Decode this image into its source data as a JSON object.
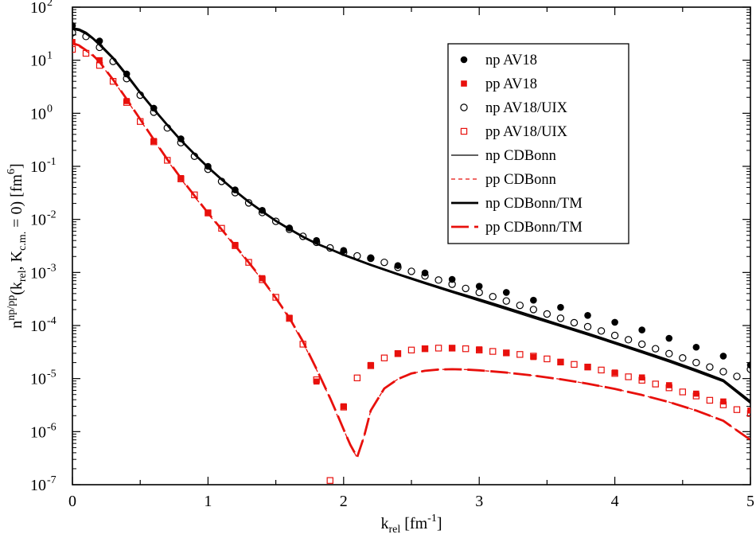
{
  "chart_data": {
    "type": "scatter",
    "title": "",
    "xlabel": {
      "main": "k",
      "sub": "rel",
      "unit_pre": " [fm",
      "unit_sup": "-1",
      "unit_post": "]"
    },
    "ylabel": {
      "main": "n",
      "sup": "np/pp",
      "arg_open": "(k",
      "sub1": "rel",
      "mid": ", K",
      "sub2": "c.m.",
      "arg_close": " = 0) [fm",
      "unit_sup": "6",
      "unit_close": "]"
    },
    "xlim": [
      0,
      5
    ],
    "ylim_log10": [
      -7,
      2
    ],
    "x_ticks": [
      {
        "value": 0,
        "label": "0"
      },
      {
        "value": 1,
        "label": "1"
      },
      {
        "value": 2,
        "label": "2"
      },
      {
        "value": 3,
        "label": "3"
      },
      {
        "value": 4,
        "label": "4"
      },
      {
        "value": 5,
        "label": "5"
      }
    ],
    "y_ticks": [
      {
        "exp": 2,
        "base": "10",
        "sup": "2"
      },
      {
        "exp": 1,
        "base": "10",
        "sup": "1"
      },
      {
        "exp": 0,
        "base": "10",
        "sup": "0"
      },
      {
        "exp": -1,
        "base": "10",
        "sup": "-1"
      },
      {
        "exp": -2,
        "base": "10",
        "sup": "-2"
      },
      {
        "exp": -3,
        "base": "10",
        "sup": "-3"
      },
      {
        "exp": -4,
        "base": "10",
        "sup": "-4"
      },
      {
        "exp": -5,
        "base": "10",
        "sup": "-5"
      },
      {
        "exp": -6,
        "base": "10",
        "sup": "-6"
      },
      {
        "exp": -7,
        "base": "10",
        "sup": "-7"
      }
    ],
    "colors": {
      "np": "#000000",
      "pp": "#e8100c"
    },
    "legend_position": "top-right",
    "series": [
      {
        "name": "np AV18",
        "kind": "marker",
        "marker": "circle-filled",
        "color": "#000000",
        "x": [
          0,
          0.2,
          0.4,
          0.6,
          0.8,
          1.0,
          1.2,
          1.4,
          1.6,
          1.8,
          2.0,
          2.2,
          2.4,
          2.6,
          2.8,
          3.0,
          3.2,
          3.4,
          3.6,
          3.8,
          4.0,
          4.2,
          4.4,
          4.6,
          4.8,
          5.0
        ],
        "y": [
          45,
          23,
          5.5,
          1.25,
          0.33,
          0.1,
          0.036,
          0.0148,
          0.0069,
          0.004,
          0.0026,
          0.0019,
          0.00135,
          0.00098,
          0.00074,
          0.00055,
          0.00042,
          0.0003,
          0.00022,
          0.000155,
          0.000115,
          8.25e-05,
          5.75e-05,
          3.9e-05,
          2.65e-05,
          1.8e-05
        ]
      },
      {
        "name": "pp AV18",
        "kind": "marker",
        "marker": "square-filled",
        "color": "#e8100c",
        "x": [
          0,
          0.2,
          0.4,
          0.6,
          0.8,
          1.0,
          1.2,
          1.4,
          1.6,
          1.8,
          2.0,
          2.2,
          2.4,
          2.6,
          2.8,
          3.0,
          3.2,
          3.4,
          3.6,
          3.8,
          4.0,
          4.2,
          4.4,
          4.6,
          4.8,
          5.0
        ],
        "y": [
          22,
          10,
          1.7,
          0.3,
          0.06,
          0.0135,
          0.0033,
          0.00078,
          0.00014,
          8.8e-06,
          3e-06,
          1.8e-05,
          3e-05,
          3.65e-05,
          3.75e-05,
          3.55e-05,
          3.05e-05,
          2.55e-05,
          2.05e-05,
          1.65e-05,
          1.3e-05,
          1.05e-05,
          7.5e-06,
          5.2e-06,
          3.7e-06,
          2.5e-06
        ]
      },
      {
        "name": "np AV18/UIX",
        "kind": "marker",
        "marker": "circle-open",
        "color": "#000000",
        "x": [
          0,
          0.1,
          0.2,
          0.3,
          0.4,
          0.5,
          0.6,
          0.7,
          0.8,
          0.9,
          1.0,
          1.1,
          1.2,
          1.3,
          1.4,
          1.5,
          1.6,
          1.7,
          1.8,
          1.9,
          2.0,
          2.1,
          2.2,
          2.3,
          2.4,
          2.5,
          2.6,
          2.7,
          2.8,
          2.9,
          3.0,
          3.1,
          3.2,
          3.3,
          3.4,
          3.5,
          3.6,
          3.7,
          3.8,
          3.9,
          4.0,
          4.1,
          4.2,
          4.3,
          4.4,
          4.5,
          4.6,
          4.7,
          4.8,
          4.9,
          5.0
        ],
        "y": [
          33,
          28,
          17.5,
          9.5,
          4.5,
          2.2,
          1.05,
          0.53,
          0.28,
          0.155,
          0.088,
          0.052,
          0.032,
          0.0205,
          0.0135,
          0.0092,
          0.0065,
          0.0048,
          0.0037,
          0.0029,
          0.0024,
          0.00205,
          0.00185,
          0.00155,
          0.00125,
          0.00105,
          0.00086,
          0.00072,
          0.0006,
          0.0005,
          0.00042,
          0.00035,
          0.00029,
          0.00024,
          0.0002,
          0.000165,
          0.000137,
          0.000113,
          9.5e-05,
          7.9e-05,
          6.5e-05,
          5.4e-05,
          4.45e-05,
          3.65e-05,
          2.95e-05,
          2.45e-05,
          2e-05,
          1.65e-05,
          1.35e-05,
          1.1e-05,
          1.5e-05
        ]
      },
      {
        "name": "pp AV18/UIX",
        "kind": "marker",
        "marker": "square-open",
        "color": "#e8100c",
        "x": [
          0,
          0.1,
          0.2,
          0.3,
          0.4,
          0.5,
          0.6,
          0.7,
          0.8,
          0.9,
          1.0,
          1.1,
          1.2,
          1.3,
          1.4,
          1.5,
          1.6,
          1.7,
          1.8,
          1.9,
          2.0,
          2.1,
          2.2,
          2.3,
          2.4,
          2.5,
          2.6,
          2.7,
          2.8,
          2.9,
          3.0,
          3.1,
          3.2,
          3.3,
          3.4,
          3.5,
          3.6,
          3.7,
          3.8,
          3.9,
          4.0,
          4.1,
          4.2,
          4.3,
          4.4,
          4.5,
          4.6,
          4.7,
          4.8,
          4.9,
          5.0
        ],
        "y": [
          16,
          13.5,
          8,
          4,
          1.6,
          0.7,
          0.29,
          0.13,
          0.058,
          0.029,
          0.0132,
          0.0068,
          0.0032,
          0.00155,
          0.00073,
          0.00034,
          0.000136,
          4.45e-05,
          9.5e-06,
          1.2e-07,
          2.9e-06,
          1.03e-05,
          1.75e-05,
          2.45e-05,
          2.95e-05,
          3.45e-05,
          3.65e-05,
          3.75e-05,
          3.75e-05,
          3.65e-05,
          3.45e-05,
          3.25e-05,
          3.05e-05,
          2.85e-05,
          2.65e-05,
          2.35e-05,
          2.05e-05,
          1.85e-05,
          1.65e-05,
          1.45e-05,
          1.25e-05,
          1.08e-05,
          9.3e-06,
          7.9e-06,
          6.7e-06,
          5.6e-06,
          4.7e-06,
          3.9e-06,
          3.2e-06,
          2.6e-06,
          2.2e-06
        ]
      },
      {
        "name": "np CDBonn",
        "kind": "line",
        "dash": "solid",
        "width": 1.3,
        "color": "#000000",
        "x": [
          0,
          0.05,
          0.1,
          0.15,
          0.2,
          0.3,
          0.4,
          0.5,
          0.6,
          0.7,
          0.8,
          0.9,
          1.0,
          1.1,
          1.2,
          1.3,
          1.4,
          1.5,
          1.6,
          1.7,
          1.8,
          1.9,
          2.0,
          2.2,
          2.4,
          2.6,
          2.8,
          3.0,
          3.2,
          3.4,
          3.6,
          3.8,
          4.0,
          4.2,
          4.4,
          4.6,
          4.8,
          5.0
        ],
        "y": [
          38,
          36,
          31,
          25,
          19,
          10.5,
          5,
          2.35,
          1.15,
          0.58,
          0.3,
          0.165,
          0.093,
          0.055,
          0.0335,
          0.021,
          0.0138,
          0.0092,
          0.0064,
          0.0046,
          0.00345,
          0.0027,
          0.0021,
          0.00135,
          0.0009,
          0.00061,
          0.00042,
          0.00029,
          0.0002,
          0.000138,
          9.55e-05,
          6.6e-05,
          4.5e-05,
          3.05e-05,
          2.05e-05,
          1.35e-05,
          8.7e-06,
          3.4e-06
        ]
      },
      {
        "name": "pp CDBonn",
        "kind": "line",
        "dash": "5,4",
        "width": 1.3,
        "color": "#e8100c",
        "x": [
          0,
          0.05,
          0.1,
          0.15,
          0.2,
          0.3,
          0.4,
          0.5,
          0.6,
          0.7,
          0.8,
          0.9,
          1.0,
          1.1,
          1.2,
          1.3,
          1.4,
          1.5,
          1.6,
          1.7,
          1.8,
          1.9,
          1.95,
          2.0,
          2.05,
          2.1,
          2.15,
          2.2,
          2.3,
          2.4,
          2.5,
          2.6,
          2.7,
          2.8,
          2.9,
          3.0,
          3.2,
          3.4,
          3.6,
          3.8,
          4.0,
          4.2,
          4.4,
          4.6,
          4.8,
          5.0
        ],
        "y": [
          20,
          18,
          15,
          12,
          9,
          4.2,
          1.8,
          0.75,
          0.31,
          0.13,
          0.058,
          0.027,
          0.0128,
          0.0063,
          0.0031,
          0.0015,
          0.00072,
          0.00032,
          0.000135,
          4.8e-05,
          1.48e-05,
          4.2e-06,
          2.1e-06,
          1.1e-06,
          5.5e-07,
          3.2e-07,
          8e-07,
          2.5e-06,
          6.5e-06,
          9.8e-06,
          1.25e-05,
          1.4e-05,
          1.48e-05,
          1.5e-05,
          1.48e-05,
          1.43e-05,
          1.3e-05,
          1.14e-05,
          9.7e-06,
          8e-06,
          6.4e-06,
          4.9e-06,
          3.6e-06,
          2.5e-06,
          1.6e-06,
          7e-07
        ]
      },
      {
        "name": "np CDBonn/TM",
        "kind": "line",
        "dash": "solid",
        "width": 2.8,
        "color": "#000000",
        "x": [
          0,
          0.05,
          0.1,
          0.15,
          0.2,
          0.3,
          0.4,
          0.5,
          0.6,
          0.7,
          0.8,
          0.9,
          1.0,
          1.1,
          1.2,
          1.3,
          1.4,
          1.5,
          1.6,
          1.7,
          1.8,
          1.9,
          2.0,
          2.2,
          2.4,
          2.6,
          2.8,
          3.0,
          3.2,
          3.4,
          3.6,
          3.8,
          4.0,
          4.2,
          4.4,
          4.6,
          4.8,
          5.0
        ],
        "y": [
          40,
          38,
          33,
          26,
          20,
          11,
          5.3,
          2.45,
          1.2,
          0.6,
          0.31,
          0.17,
          0.096,
          0.057,
          0.0345,
          0.0215,
          0.0141,
          0.0094,
          0.0066,
          0.0047,
          0.0035,
          0.00275,
          0.00215,
          0.00139,
          0.00093,
          0.00064,
          0.00044,
          0.00031,
          0.000215,
          0.000148,
          0.000102,
          7.05e-05,
          4.8e-05,
          3.25e-05,
          2.2e-05,
          1.45e-05,
          9.3e-06,
          3.7e-06
        ]
      },
      {
        "name": "pp CDBonn/TM",
        "kind": "line",
        "dash": "22,7",
        "width": 2.8,
        "color": "#e8100c",
        "x": [
          0,
          0.05,
          0.1,
          0.15,
          0.2,
          0.3,
          0.4,
          0.5,
          0.6,
          0.7,
          0.8,
          0.9,
          1.0,
          1.1,
          1.2,
          1.3,
          1.4,
          1.5,
          1.6,
          1.7,
          1.8,
          1.9,
          1.95,
          2.0,
          2.05,
          2.1,
          2.15,
          2.2,
          2.3,
          2.4,
          2.5,
          2.6,
          2.7,
          2.8,
          2.9,
          3.0,
          3.2,
          3.4,
          3.6,
          3.8,
          4.0,
          4.2,
          4.4,
          4.6,
          4.8,
          5.0
        ],
        "y": [
          21,
          19,
          15.5,
          12.5,
          9.3,
          4.3,
          1.85,
          0.77,
          0.32,
          0.135,
          0.06,
          0.028,
          0.0132,
          0.0065,
          0.0032,
          0.00155,
          0.00074,
          0.00033,
          0.00014,
          5e-05,
          1.52e-05,
          4.3e-06,
          2.2e-06,
          1.1e-06,
          5.6e-07,
          3.3e-07,
          8e-07,
          2.5e-06,
          6.5e-06,
          9.8e-06,
          1.25e-05,
          1.4e-05,
          1.48e-05,
          1.5e-05,
          1.48e-05,
          1.43e-05,
          1.3e-05,
          1.14e-05,
          9.7e-06,
          8e-06,
          6.4e-06,
          4.9e-06,
          3.6e-06,
          2.5e-06,
          1.6e-06,
          7e-07
        ]
      }
    ]
  }
}
